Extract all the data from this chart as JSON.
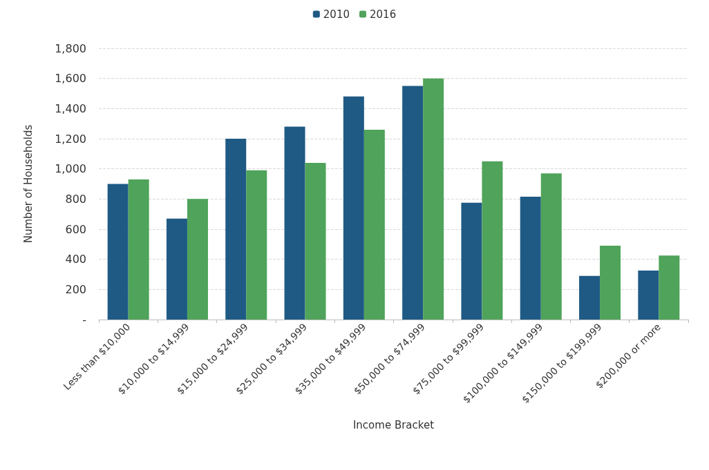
{
  "chart_data": {
    "type": "bar",
    "xlabel": "Income Bracket",
    "ylabel": "Number of Households",
    "categories": [
      "Less than $10,000",
      "$10,000 to $14,999",
      "$15,000 to $24,999",
      "$25,000 to $34,999",
      "$35,000 to $49,999",
      "$50,000 to $74,999",
      "$75,000 to $99,999",
      "$100,000 to $149,999",
      "$150,000 to $199,999",
      "$200,000 or more"
    ],
    "series": [
      {
        "name": "2010",
        "color": "#1f5a85",
        "values": [
          900,
          670,
          1200,
          1280,
          1480,
          1550,
          775,
          815,
          290,
          325
        ]
      },
      {
        "name": "2016",
        "color": "#4fa35a",
        "values": [
          930,
          800,
          990,
          1040,
          1260,
          1600,
          1050,
          970,
          490,
          425
        ]
      }
    ],
    "ylim": [
      0,
      1800
    ],
    "yticks": [
      {
        "value": 0,
        "label": "-"
      },
      200,
      400,
      600,
      800,
      {
        "value": 1000,
        "label": "1,000"
      },
      {
        "value": 1200,
        "label": "1,200"
      },
      {
        "value": 1400,
        "label": "1,400"
      },
      {
        "value": 1600,
        "label": "1,600"
      },
      {
        "value": 1800,
        "label": "1,800"
      }
    ],
    "grid": "y",
    "legend": "top"
  }
}
